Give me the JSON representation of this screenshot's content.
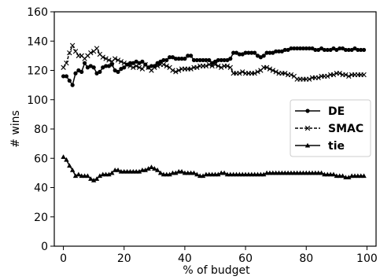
{
  "chart_data": {
    "type": "line",
    "title": "",
    "xlabel": "% of budget",
    "ylabel": "# wins",
    "xlim": [
      -3,
      103
    ],
    "ylim": [
      0,
      160
    ],
    "xticks": [
      0,
      20,
      40,
      60,
      80,
      100
    ],
    "yticks": [
      0,
      20,
      40,
      60,
      80,
      100,
      120,
      140,
      160
    ],
    "grid": false,
    "legend_position": "center-right",
    "series": [
      {
        "name": "DE",
        "marker": "circle",
        "color": "#000000",
        "x": [
          0,
          1,
          2,
          3,
          4,
          5,
          6,
          7,
          8,
          9,
          10,
          11,
          12,
          13,
          14,
          15,
          16,
          17,
          18,
          19,
          20,
          21,
          22,
          23,
          24,
          25,
          26,
          27,
          28,
          29,
          30,
          31,
          32,
          33,
          34,
          35,
          36,
          37,
          38,
          39,
          40,
          41,
          42,
          43,
          44,
          45,
          46,
          47,
          48,
          49,
          50,
          51,
          52,
          53,
          54,
          55,
          56,
          57,
          58,
          59,
          60,
          61,
          62,
          63,
          64,
          65,
          66,
          67,
          68,
          69,
          70,
          71,
          72,
          73,
          74,
          75,
          76,
          77,
          78,
          79,
          80,
          81,
          82,
          83,
          84,
          85,
          86,
          87,
          88,
          89,
          90,
          91,
          92,
          93,
          94,
          95,
          96,
          97,
          98,
          99
        ],
        "y": [
          116,
          116,
          113,
          110,
          118,
          120,
          119,
          125,
          122,
          123,
          122,
          118,
          119,
          122,
          123,
          123,
          124,
          120,
          119,
          121,
          122,
          124,
          125,
          125,
          126,
          125,
          126,
          124,
          122,
          123,
          123,
          125,
          126,
          127,
          127,
          129,
          129,
          128,
          128,
          128,
          128,
          130,
          130,
          127,
          127,
          127,
          127,
          127,
          127,
          125,
          126,
          127,
          127,
          127,
          127,
          128,
          132,
          132,
          131,
          131,
          132,
          132,
          132,
          132,
          130,
          129,
          130,
          132,
          132,
          132,
          133,
          133,
          133,
          134,
          134,
          135,
          135,
          135,
          135,
          135,
          135,
          135,
          135,
          134,
          134,
          135,
          134,
          134,
          134,
          135,
          134,
          135,
          135,
          134,
          134,
          134,
          135,
          134,
          134,
          134
        ]
      },
      {
        "name": "SMAC",
        "marker": "x",
        "color": "#000000",
        "x": [
          0,
          1,
          2,
          3,
          4,
          5,
          6,
          7,
          8,
          9,
          10,
          11,
          12,
          13,
          14,
          15,
          16,
          17,
          18,
          19,
          20,
          21,
          22,
          23,
          24,
          25,
          26,
          27,
          28,
          29,
          30,
          31,
          32,
          33,
          34,
          35,
          36,
          37,
          38,
          39,
          40,
          41,
          42,
          43,
          44,
          45,
          46,
          47,
          48,
          49,
          50,
          51,
          52,
          53,
          54,
          55,
          56,
          57,
          58,
          59,
          60,
          61,
          62,
          63,
          64,
          65,
          66,
          67,
          68,
          69,
          70,
          71,
          72,
          73,
          74,
          75,
          76,
          77,
          78,
          79,
          80,
          81,
          82,
          83,
          84,
          85,
          86,
          87,
          88,
          89,
          90,
          91,
          92,
          93,
          94,
          95,
          96,
          97,
          98,
          99
        ],
        "y": [
          122,
          125,
          132,
          137,
          133,
          130,
          130,
          128,
          130,
          132,
          133,
          135,
          131,
          129,
          128,
          127,
          126,
          128,
          127,
          126,
          125,
          124,
          123,
          122,
          123,
          122,
          121,
          124,
          122,
          120,
          122,
          123,
          124,
          124,
          123,
          122,
          120,
          119,
          120,
          121,
          121,
          121,
          121,
          122,
          122,
          123,
          123,
          123,
          124,
          123,
          124,
          123,
          122,
          123,
          123,
          122,
          118,
          118,
          118,
          119,
          118,
          118,
          118,
          118,
          119,
          120,
          122,
          122,
          121,
          120,
          119,
          118,
          118,
          118,
          117,
          117,
          116,
          114,
          114,
          114,
          114,
          114,
          115,
          115,
          115,
          116,
          116,
          116,
          117,
          117,
          118,
          118,
          117,
          117,
          116,
          117,
          117,
          117,
          117,
          117
        ]
      },
      {
        "name": "tie",
        "marker": "triangle",
        "color": "#000000",
        "x": [
          0,
          1,
          2,
          3,
          4,
          5,
          6,
          7,
          8,
          9,
          10,
          11,
          12,
          13,
          14,
          15,
          16,
          17,
          18,
          19,
          20,
          21,
          22,
          23,
          24,
          25,
          26,
          27,
          28,
          29,
          30,
          31,
          32,
          33,
          34,
          35,
          36,
          37,
          38,
          39,
          40,
          41,
          42,
          43,
          44,
          45,
          46,
          47,
          48,
          49,
          50,
          51,
          52,
          53,
          54,
          55,
          56,
          57,
          58,
          59,
          60,
          61,
          62,
          63,
          64,
          65,
          66,
          67,
          68,
          69,
          70,
          71,
          72,
          73,
          74,
          75,
          76,
          77,
          78,
          79,
          80,
          81,
          82,
          83,
          84,
          85,
          86,
          87,
          88,
          89,
          90,
          91,
          92,
          93,
          94,
          95,
          96,
          97,
          98,
          99
        ],
        "y": [
          61,
          59,
          55,
          52,
          48,
          49,
          48,
          48,
          48,
          46,
          45,
          46,
          48,
          49,
          49,
          49,
          50,
          52,
          52,
          51,
          51,
          51,
          51,
          51,
          51,
          51,
          52,
          52,
          53,
          54,
          53,
          52,
          50,
          49,
          49,
          49,
          50,
          50,
          51,
          51,
          50,
          50,
          50,
          50,
          49,
          48,
          48,
          49,
          49,
          49,
          49,
          49,
          50,
          50,
          49,
          49,
          49,
          49,
          49,
          49,
          49,
          49,
          49,
          49,
          49,
          49,
          49,
          50,
          50,
          50,
          50,
          50,
          50,
          50,
          50,
          50,
          50,
          50,
          50,
          50,
          50,
          50,
          50,
          50,
          50,
          50,
          49,
          49,
          49,
          49,
          48,
          48,
          48,
          47,
          47,
          48,
          48,
          48,
          48,
          48
        ]
      }
    ]
  }
}
